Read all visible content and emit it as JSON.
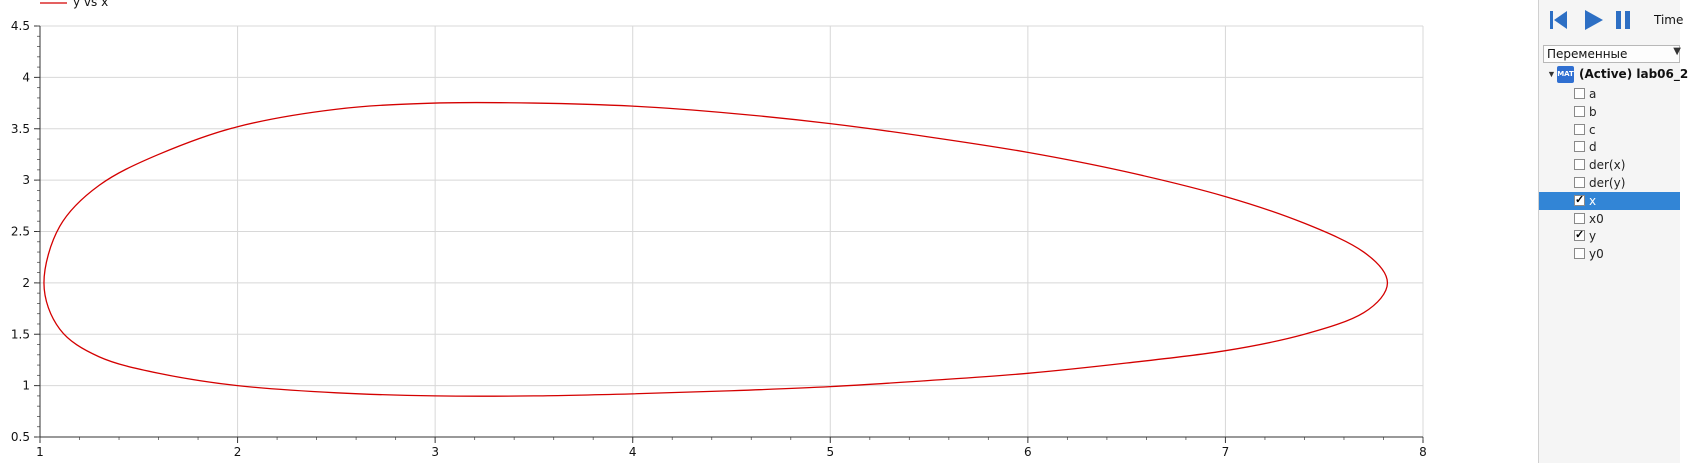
{
  "plot": {
    "legend_label": "y vs x",
    "x_ticks": [
      "1",
      "2",
      "3",
      "4",
      "5",
      "6",
      "7",
      "8"
    ],
    "y_ticks": [
      "0.5",
      "1",
      "1.5",
      "2",
      "2.5",
      "3",
      "3.5",
      "4",
      "4.5"
    ],
    "curve_color": "#d40000",
    "grid_color": "#d8d8d8"
  },
  "chart_data": {
    "type": "line",
    "title": "",
    "xlabel": "",
    "ylabel": "",
    "xlim": [
      1,
      8
    ],
    "ylim": [
      0.5,
      4.5
    ],
    "grid": true,
    "legend": "top-left",
    "series": [
      {
        "name": "y vs x",
        "x": [
          1.02,
          1.1,
          1.3,
          1.6,
          2.0,
          2.5,
          3.0,
          3.5,
          4.0,
          4.5,
          5.0,
          5.5,
          6.0,
          6.5,
          7.0,
          7.4,
          7.7,
          7.82,
          7.7,
          7.4,
          7.0,
          6.5,
          6.0,
          5.5,
          5.0,
          4.5,
          4.0,
          3.5,
          3.0,
          2.5,
          2.0,
          1.6,
          1.3,
          1.1,
          1.02
        ],
        "y": [
          2.0,
          2.55,
          2.95,
          3.25,
          3.52,
          3.69,
          3.75,
          3.75,
          3.72,
          3.65,
          3.55,
          3.42,
          3.27,
          3.08,
          2.84,
          2.58,
          2.3,
          2.0,
          1.71,
          1.5,
          1.34,
          1.22,
          1.12,
          1.05,
          0.99,
          0.95,
          0.92,
          0.9,
          0.9,
          0.93,
          1.0,
          1.12,
          1.28,
          1.55,
          2.0
        ]
      }
    ]
  },
  "controls": {
    "time_label": "Time"
  },
  "panel": {
    "dropdown_value": "Переменные",
    "root_icon_text": "MAT",
    "root_label": "(Active) lab06_2",
    "variables": [
      {
        "name": "a",
        "checked": false,
        "selected": false
      },
      {
        "name": "b",
        "checked": false,
        "selected": false
      },
      {
        "name": "c",
        "checked": false,
        "selected": false
      },
      {
        "name": "d",
        "checked": false,
        "selected": false
      },
      {
        "name": "der(x)",
        "checked": false,
        "selected": false
      },
      {
        "name": "der(y)",
        "checked": false,
        "selected": false
      },
      {
        "name": "x",
        "checked": true,
        "selected": true
      },
      {
        "name": "x0",
        "checked": false,
        "selected": false
      },
      {
        "name": "y",
        "checked": true,
        "selected": false
      },
      {
        "name": "y0",
        "checked": false,
        "selected": false
      }
    ]
  }
}
